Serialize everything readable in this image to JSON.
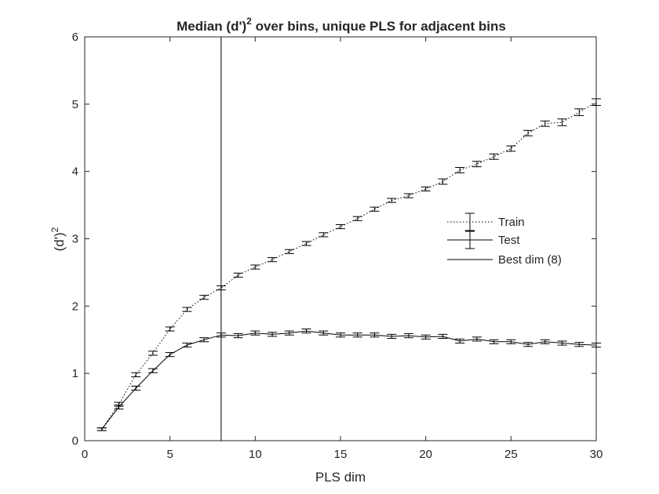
{
  "chart_data": {
    "type": "line",
    "title_main": "Median (d')",
    "title_sup": "2",
    "title_rest": " over bins, unique PLS for adjacent bins",
    "xlabel": "PLS dim",
    "ylabel_main": "(d')",
    "ylabel_sup": "2",
    "xlim": [
      0,
      30
    ],
    "ylim": [
      0,
      6
    ],
    "xticks": [
      0,
      5,
      10,
      15,
      20,
      25,
      30
    ],
    "yticks": [
      0,
      1,
      2,
      3,
      4,
      5,
      6
    ],
    "grid": false,
    "legend_position": "right-middle",
    "x": [
      1,
      2,
      3,
      4,
      5,
      6,
      7,
      8,
      9,
      10,
      11,
      12,
      13,
      14,
      15,
      16,
      17,
      18,
      19,
      20,
      21,
      22,
      23,
      24,
      25,
      26,
      27,
      28,
      29,
      30
    ],
    "series": [
      {
        "name": "Train",
        "style": "dotted",
        "values": [
          0.17,
          0.54,
          0.98,
          1.3,
          1.66,
          1.95,
          2.13,
          2.27,
          2.46,
          2.58,
          2.69,
          2.81,
          2.93,
          3.06,
          3.18,
          3.3,
          3.44,
          3.57,
          3.64,
          3.74,
          3.85,
          4.02,
          4.11,
          4.22,
          4.34,
          4.57,
          4.71,
          4.73,
          4.88,
          5.03
        ],
        "errors": [
          0.02,
          0.03,
          0.03,
          0.03,
          0.03,
          0.03,
          0.03,
          0.03,
          0.03,
          0.03,
          0.03,
          0.03,
          0.03,
          0.03,
          0.03,
          0.03,
          0.03,
          0.03,
          0.03,
          0.03,
          0.04,
          0.04,
          0.04,
          0.04,
          0.04,
          0.04,
          0.04,
          0.05,
          0.05,
          0.05
        ]
      },
      {
        "name": "Test",
        "style": "solid",
        "values": [
          0.17,
          0.5,
          0.78,
          1.04,
          1.28,
          1.42,
          1.5,
          1.57,
          1.56,
          1.6,
          1.58,
          1.6,
          1.63,
          1.6,
          1.57,
          1.57,
          1.57,
          1.55,
          1.56,
          1.54,
          1.55,
          1.48,
          1.51,
          1.47,
          1.47,
          1.43,
          1.47,
          1.45,
          1.43,
          1.42
        ],
        "errors": [
          0.02,
          0.03,
          0.03,
          0.03,
          0.03,
          0.03,
          0.03,
          0.03,
          0.03,
          0.03,
          0.03,
          0.03,
          0.03,
          0.03,
          0.03,
          0.03,
          0.03,
          0.03,
          0.03,
          0.03,
          0.03,
          0.03,
          0.03,
          0.03,
          0.03,
          0.03,
          0.03,
          0.03,
          0.03,
          0.03
        ]
      }
    ],
    "best_dim": {
      "name": "Best dim (8)",
      "x": 8
    }
  }
}
